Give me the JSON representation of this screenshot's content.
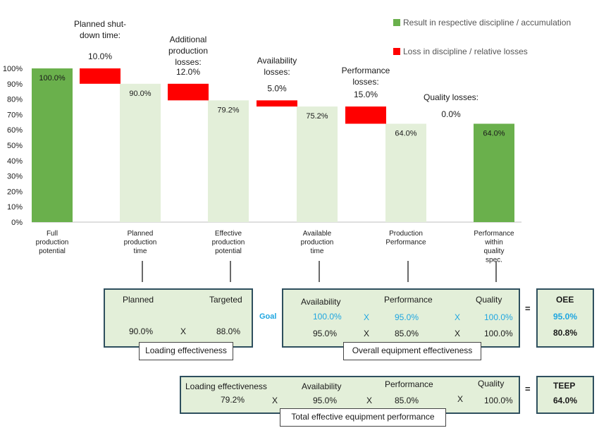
{
  "chart_data": {
    "type": "bar",
    "subtype": "waterfall",
    "ylim": [
      0,
      100
    ],
    "yticks": [
      "0%",
      "10%",
      "20%",
      "30%",
      "40%",
      "50%",
      "60%",
      "70%",
      "80%",
      "90%",
      "100%"
    ],
    "legend": [
      {
        "label": "Result in respective discipline / accumulation",
        "color": "#6ab04c"
      },
      {
        "label": "Loss in discipline / relative losses",
        "color": "#ff0000"
      }
    ],
    "results": [
      {
        "label": "Full production potential",
        "value": 100.0,
        "value_label": "100.0%",
        "color": "#6ab04c"
      },
      {
        "label": "Planned production time",
        "value": 90.0,
        "value_label": "90.0%",
        "color": "#e3efd9"
      },
      {
        "label": "Effective production potential",
        "value": 79.2,
        "value_label": "79.2%",
        "color": "#e3efd9"
      },
      {
        "label": "Available production time",
        "value": 75.2,
        "value_label": "75.2%",
        "color": "#e3efd9"
      },
      {
        "label": "Production Performance",
        "value": 64.0,
        "value_label": "64.0%",
        "color": "#e3efd9"
      },
      {
        "label": "Performance within quality spec.",
        "value": 64.0,
        "value_label": "64.0%",
        "color": "#6ab04c"
      }
    ],
    "losses": [
      {
        "title": "Planned shut-down time:",
        "value_label": "10.0%",
        "from": 100.0,
        "to": 90.0
      },
      {
        "title": "Additional production losses:",
        "value_label": "12.0%",
        "from": 90.0,
        "to": 79.2
      },
      {
        "title": "Availability losses:",
        "value_label": "5.0%",
        "from": 79.2,
        "to": 75.2
      },
      {
        "title": "Performance losses:",
        "value_label": "15.0%",
        "from": 75.2,
        "to": 64.0
      },
      {
        "title": "Quality losses:",
        "value_label": "0.0%",
        "from": 64.0,
        "to": 64.0
      }
    ]
  },
  "loading": {
    "planned_label": "Planned",
    "targeted_label": "Targeted",
    "planned_value": "90.0%",
    "x": "X",
    "targeted_value": "88.0%",
    "caption": "Loading effectiveness"
  },
  "oee": {
    "goal_label": "Goal",
    "availability_label": "Availability",
    "performance_label": "Performance",
    "quality_label": "Quality",
    "goal_availability": "100.0%",
    "goal_performance": "95.0%",
    "goal_quality": "100.0%",
    "availability": "95.0%",
    "performance": "85.0%",
    "quality": "100.0%",
    "x": "X",
    "equals": "=",
    "caption": "Overall equipment effectiveness",
    "result_label": "OEE",
    "result_goal": "95.0%",
    "result_value": "80.8%"
  },
  "teep": {
    "loading_label": "Loading effectiveness",
    "availability_label": "Availability",
    "performance_label": "Performance",
    "quality_label": "Quality",
    "loading": "79.2%",
    "availability": "95.0%",
    "performance": "85.0%",
    "quality": "100.0%",
    "x": "X",
    "equals": "=",
    "caption": "Total effective equipment performance",
    "result_label": "TEEP",
    "result_value": "64.0%"
  }
}
